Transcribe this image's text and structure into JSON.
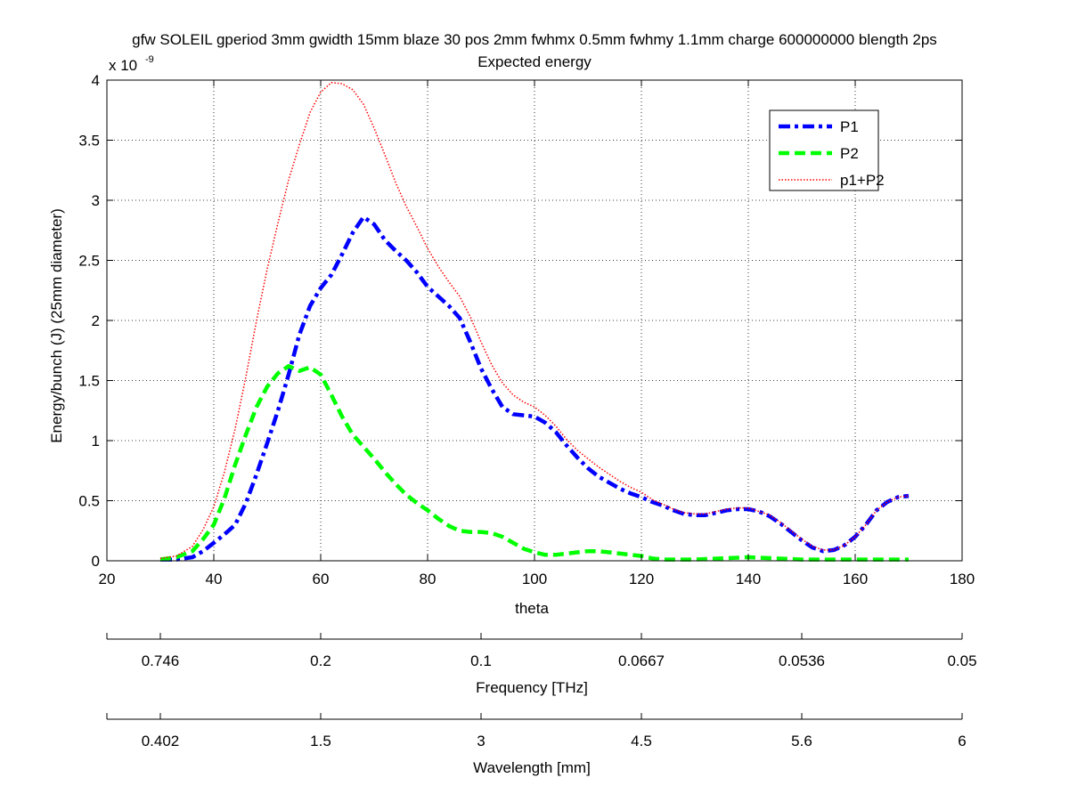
{
  "chart_data": {
    "type": "line",
    "title": "gfw SOLEIL gperiod 3mm gwidth 15mm blaze 30 pos 2mm fwhmx 0.5mm fwhmy 1.1mm charge 600000000 blength 2ps",
    "subtitle": "Expected energy",
    "xlabel": "theta",
    "ylabel": "Energy/bunch (J) (25mm diameter)",
    "y_multiplier": "x 10",
    "y_multiplier_exponent": "-9",
    "xlim": [
      20,
      180
    ],
    "ylim": [
      0,
      4
    ],
    "xticks": [
      20,
      40,
      60,
      80,
      100,
      120,
      140,
      160,
      180
    ],
    "yticks": [
      0,
      0.5,
      1,
      1.5,
      2,
      2.5,
      3,
      3.5,
      4
    ],
    "ytick_labels": [
      "0",
      "0.5",
      "1",
      "1.5",
      "2",
      "2.5",
      "3",
      "3.5",
      "4"
    ],
    "grid": true,
    "legend_position": "top-right",
    "series": [
      {
        "name": "P1",
        "color": "#0000ff",
        "style": "dash-dot",
        "x": [
          30,
          33,
          36,
          38,
          40,
          42,
          44,
          46,
          48,
          50,
          52,
          54,
          56,
          58,
          60,
          62,
          64,
          66,
          68,
          70,
          72,
          74,
          76,
          78,
          80,
          82,
          84,
          86,
          88,
          90,
          92,
          94,
          96,
          98,
          100,
          102,
          104,
          106,
          108,
          110,
          112,
          114,
          116,
          118,
          120,
          122,
          124,
          126,
          128,
          130,
          132,
          134,
          136,
          138,
          140,
          142,
          144,
          146,
          148,
          150,
          152,
          154,
          156,
          158,
          160,
          162,
          164,
          166,
          168,
          170
        ],
        "y": [
          0.01,
          0.01,
          0.03,
          0.08,
          0.15,
          0.22,
          0.3,
          0.48,
          0.72,
          0.98,
          1.25,
          1.55,
          1.88,
          2.12,
          2.27,
          2.38,
          2.55,
          2.73,
          2.86,
          2.8,
          2.67,
          2.58,
          2.5,
          2.4,
          2.28,
          2.2,
          2.12,
          2.02,
          1.82,
          1.6,
          1.43,
          1.28,
          1.22,
          1.21,
          1.2,
          1.15,
          1.07,
          0.96,
          0.86,
          0.77,
          0.7,
          0.65,
          0.6,
          0.56,
          0.53,
          0.49,
          0.46,
          0.42,
          0.39,
          0.38,
          0.38,
          0.4,
          0.42,
          0.43,
          0.43,
          0.41,
          0.37,
          0.31,
          0.24,
          0.17,
          0.11,
          0.08,
          0.09,
          0.13,
          0.2,
          0.3,
          0.42,
          0.49,
          0.53,
          0.54
        ]
      },
      {
        "name": "P2",
        "color": "#00ff00",
        "style": "dashed",
        "x": [
          30,
          33,
          36,
          38,
          40,
          42,
          44,
          46,
          48,
          50,
          52,
          54,
          56,
          58,
          60,
          62,
          64,
          66,
          68,
          70,
          72,
          74,
          76,
          78,
          80,
          82,
          84,
          86,
          88,
          90,
          92,
          94,
          96,
          98,
          100,
          102,
          104,
          106,
          108,
          110,
          112,
          114,
          116,
          118,
          120,
          122,
          124,
          126,
          128,
          130,
          135,
          140,
          145,
          150,
          155,
          160,
          165,
          170
        ],
        "y": [
          0.01,
          0.03,
          0.08,
          0.18,
          0.3,
          0.52,
          0.8,
          1.05,
          1.28,
          1.45,
          1.56,
          1.62,
          1.58,
          1.61,
          1.55,
          1.38,
          1.2,
          1.05,
          0.95,
          0.85,
          0.74,
          0.64,
          0.55,
          0.48,
          0.42,
          0.35,
          0.29,
          0.25,
          0.24,
          0.24,
          0.23,
          0.2,
          0.15,
          0.1,
          0.07,
          0.05,
          0.05,
          0.06,
          0.07,
          0.08,
          0.08,
          0.07,
          0.06,
          0.05,
          0.04,
          0.02,
          0.01,
          0.01,
          0.01,
          0.01,
          0.02,
          0.03,
          0.02,
          0.01,
          0.01,
          0.01,
          0.01,
          0.01
        ]
      },
      {
        "name": "p1+P2",
        "color": "#ff0000",
        "style": "dotted",
        "x": [
          30,
          33,
          36,
          38,
          40,
          42,
          44,
          46,
          48,
          50,
          52,
          54,
          56,
          58,
          60,
          62,
          64,
          66,
          68,
          70,
          72,
          74,
          76,
          78,
          80,
          82,
          84,
          86,
          88,
          90,
          92,
          94,
          96,
          98,
          100,
          102,
          104,
          106,
          108,
          110,
          112,
          114,
          116,
          118,
          120,
          122,
          124,
          126,
          128,
          130,
          132,
          134,
          136,
          138,
          140,
          142,
          144,
          146,
          148,
          150,
          152,
          154,
          156,
          158,
          160,
          162,
          164,
          166,
          168,
          170
        ],
        "y": [
          0.02,
          0.04,
          0.12,
          0.26,
          0.45,
          0.74,
          1.1,
          1.53,
          2.0,
          2.43,
          2.81,
          3.17,
          3.46,
          3.73,
          3.9,
          3.98,
          3.97,
          3.92,
          3.8,
          3.6,
          3.38,
          3.15,
          2.95,
          2.78,
          2.6,
          2.45,
          2.32,
          2.2,
          2.03,
          1.82,
          1.63,
          1.48,
          1.38,
          1.32,
          1.28,
          1.21,
          1.12,
          1.01,
          0.92,
          0.85,
          0.78,
          0.72,
          0.66,
          0.61,
          0.57,
          0.51,
          0.47,
          0.43,
          0.4,
          0.39,
          0.39,
          0.41,
          0.43,
          0.44,
          0.44,
          0.41,
          0.38,
          0.32,
          0.25,
          0.18,
          0.12,
          0.09,
          0.09,
          0.13,
          0.2,
          0.3,
          0.42,
          0.49,
          0.53,
          0.54
        ]
      }
    ],
    "secondary_axes": [
      {
        "name": "frequency",
        "label": "Frequency [THz]",
        "tick_labels": [
          "0.746",
          "0.2",
          "0.1",
          "0.0667",
          "0.0536",
          "0.05"
        ]
      },
      {
        "name": "wavelength",
        "label": "Wavelength [mm]",
        "tick_labels": [
          "0.402",
          "1.5",
          "3",
          "4.5",
          "5.6",
          "6"
        ]
      }
    ]
  }
}
